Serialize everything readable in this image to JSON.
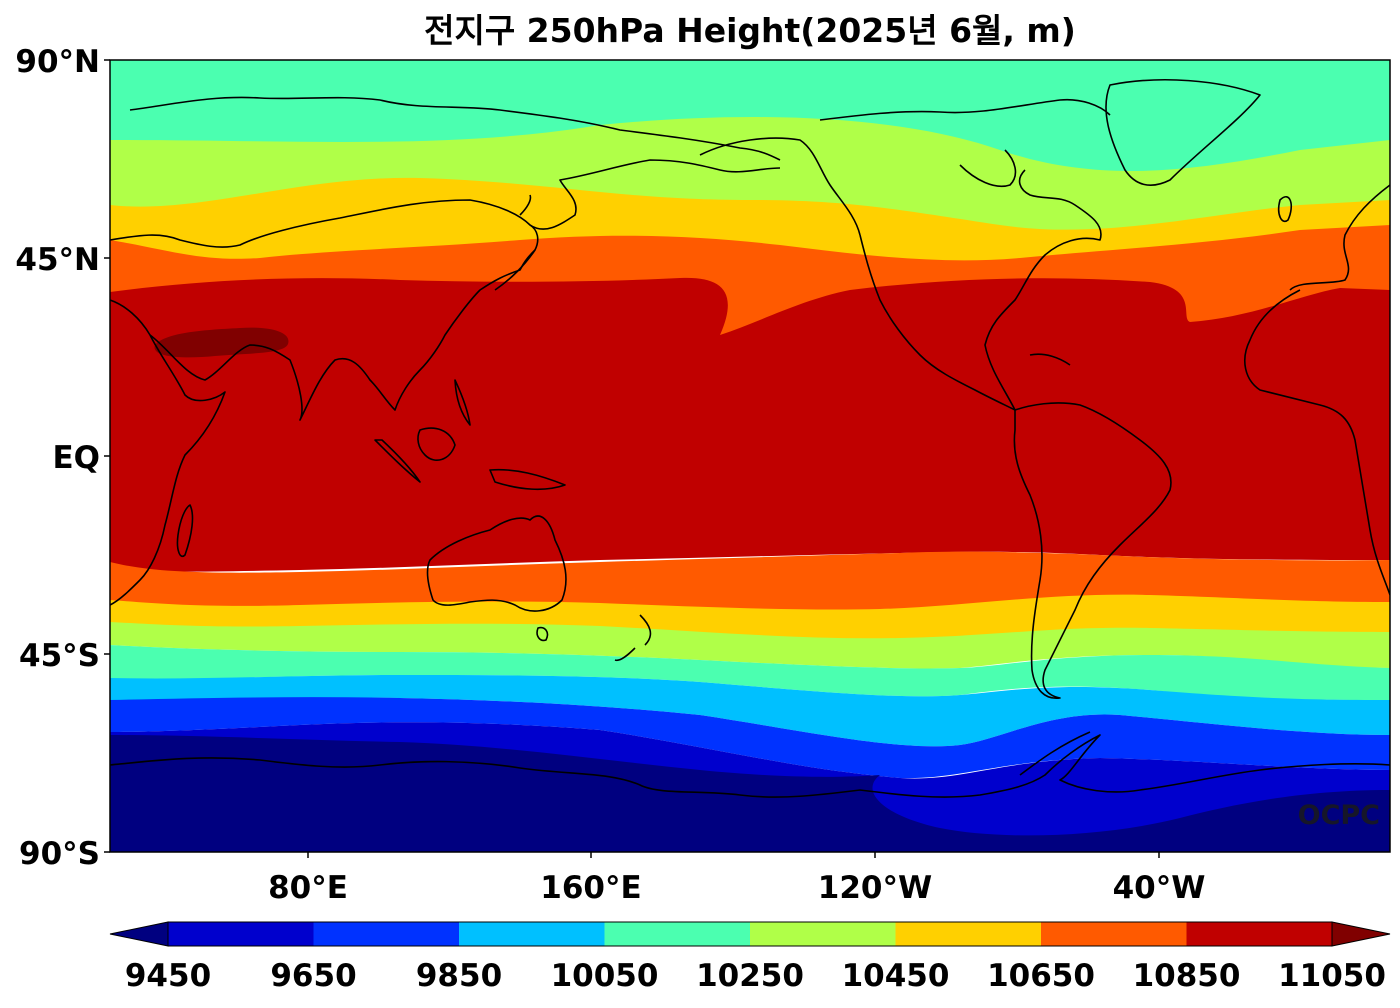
{
  "title": "전지구 250hPa Height(2025년 6월, m)",
  "watermark": "OCPC",
  "lat_labels": [
    "90°N",
    "45°N",
    "EQ",
    "45°S",
    "90°S"
  ],
  "lon_labels": [
    "80°E",
    "160°E",
    "120°W",
    "40°W"
  ],
  "colorbar": {
    "ticks": [
      "9450",
      "9650",
      "9850",
      "10050",
      "10250",
      "10450",
      "10650",
      "10850",
      "11050"
    ],
    "colors": [
      "#000080",
      "#0000cd",
      "#0032ff",
      "#00c0ff",
      "#4bffb0",
      "#b0ff48",
      "#ffd000",
      "#ff5a00",
      "#c00000",
      "#800000"
    ]
  },
  "chart_data": {
    "type": "heatmap",
    "title": "전지구 250hPa Height(2025년 6월, m)",
    "variable": "250hPa geopotential height",
    "units": "m",
    "lon_range_deg_east": [
      20,
      380
    ],
    "lat_range": [
      -90,
      90
    ],
    "xticks": [
      "80°E",
      "160°E",
      "120°W",
      "40°W"
    ],
    "yticks": [
      "90°N",
      "45°N",
      "EQ",
      "45°S",
      "90°S"
    ],
    "levels": [
      9450,
      9650,
      9850,
      10050,
      10250,
      10450,
      10650,
      10850,
      11050
    ],
    "zonal_band_lats": {
      "boundary_10050_10250_NH": 67,
      "boundary_10250_10450_NH": 57,
      "boundary_10450_10650_NH": 48,
      "boundary_10650_10850_NH": 41,
      "max_region_11050_plus": "Arabian Peninsula / Iran (~28°N, 35–60°E)",
      "boundary_10650_10850_SH": -24,
      "boundary_10450_10650_SH": -33,
      "boundary_10250_10450_SH": -38,
      "boundary_10050_10250_SH": -43,
      "boundary_9850_10050_SH": -47,
      "boundary_9650_9850_SH": -52,
      "boundary_9450_9650_SH": -58
    }
  }
}
